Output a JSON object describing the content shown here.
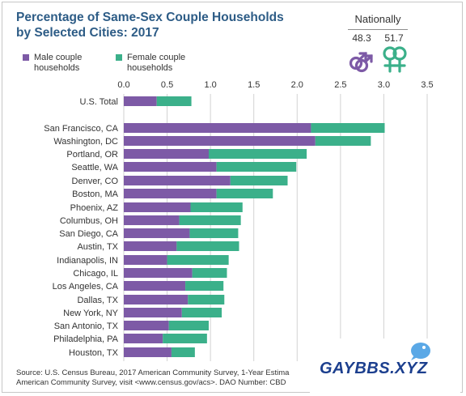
{
  "header": {
    "title_line1": "Percentage of Same-Sex Couple Households",
    "title_line2": "by Selected Cities: 2017"
  },
  "legend": {
    "male_label": "Male couple households",
    "female_label": "Female couple households"
  },
  "nationally": {
    "title": "Nationally",
    "male_value": "48.3",
    "female_value": "51.7",
    "male_icon": "male-couple-icon",
    "female_icon": "female-couple-icon"
  },
  "colors": {
    "male": "#7d5aa6",
    "female": "#3bb08a",
    "title": "#2d5c86",
    "grid": "#d2d2d2"
  },
  "chart_data": {
    "type": "bar",
    "orientation": "horizontal",
    "stacked": true,
    "title": "Percentage of Same-Sex Couple Households by Selected Cities: 2017",
    "xlabel": "",
    "ylabel": "",
    "xlim": [
      0,
      3.5
    ],
    "xticks": [
      0.0,
      0.5,
      1.0,
      1.5,
      2.0,
      2.5,
      3.0,
      3.5
    ],
    "xtick_labels": [
      "0.0",
      "0.5",
      "1.0",
      "1.5",
      "2.0",
      "2.5",
      "3.0",
      "3.5"
    ],
    "grid": true,
    "legend_position": "top-left",
    "categories": [
      "U.S. Total",
      "San Francisco, CA",
      "Washington, DC",
      "Portland, OR",
      "Seattle, WA",
      "Denver, CO",
      "Boston, MA",
      "Phoenix, AZ",
      "Columbus, OH",
      "San Diego, CA",
      "Austin, TX",
      "Indianapolis, IN",
      "Chicago, IL",
      "Los Angeles, CA",
      "Dallas, TX",
      "New York, NY",
      "San Antonio, TX",
      "Philadelphia, PA",
      "Houston, TX"
    ],
    "series": [
      {
        "name": "Male couple households",
        "values": [
          0.38,
          2.16,
          2.21,
          0.98,
          1.07,
          1.23,
          1.07,
          0.77,
          0.64,
          0.76,
          0.61,
          0.5,
          0.79,
          0.71,
          0.74,
          0.67,
          0.52,
          0.45,
          0.55
        ]
      },
      {
        "name": "Female couple households",
        "values": [
          0.4,
          0.85,
          0.64,
          1.13,
          0.92,
          0.66,
          0.65,
          0.6,
          0.71,
          0.56,
          0.72,
          0.71,
          0.4,
          0.44,
          0.42,
          0.46,
          0.46,
          0.51,
          0.27
        ]
      }
    ]
  },
  "footer": {
    "line1": "Source: U.S. Census Bureau, 2017 American Community Survey, 1-Year Estima",
    "line2": "American Community Survey, visit <www.census.gov/acs>. DAO Number: CBD"
  },
  "watermark": {
    "text": "GAYBBS.XYZ"
  }
}
